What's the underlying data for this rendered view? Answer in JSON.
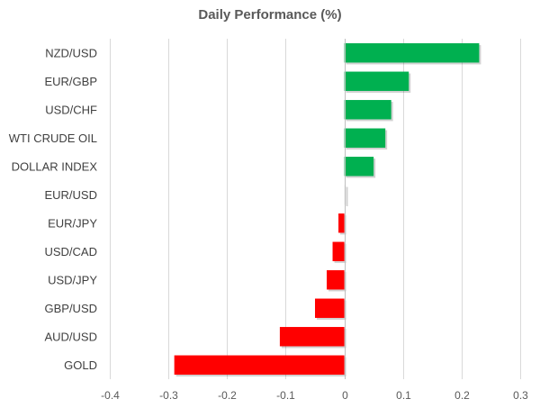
{
  "chart_data": {
    "type": "bar",
    "orientation": "horizontal",
    "title": "Daily Performance (%)",
    "xlabel": "",
    "ylabel": "",
    "categories": [
      "NZD/USD",
      "EUR/GBP",
      "USD/CHF",
      "WTI CRUDE OIL",
      "DOLLAR INDEX",
      "EUR/USD",
      "EUR/JPY",
      "USD/CAD",
      "USD/JPY",
      "GBP/USD",
      "AUD/USD",
      "GOLD"
    ],
    "values": [
      0.23,
      0.11,
      0.08,
      0.07,
      0.05,
      0.003,
      -0.01,
      -0.02,
      -0.03,
      -0.05,
      -0.11,
      -0.29
    ],
    "xlim": [
      -0.4,
      0.3
    ],
    "xticks": [
      -0.4,
      -0.3,
      -0.2,
      -0.1,
      0,
      0.1,
      0.2,
      0.3
    ],
    "xtick_labels": [
      "-0.4",
      "-0.3",
      "-0.2",
      "-0.1",
      "0",
      "0.1",
      "0.2",
      "0.3"
    ],
    "grid": "vertical",
    "legend": "none",
    "colors": {
      "positive": "#00b050",
      "negative": "#ff0000",
      "grid": "#d9d9d9",
      "axis": "#bfbfbf"
    }
  }
}
